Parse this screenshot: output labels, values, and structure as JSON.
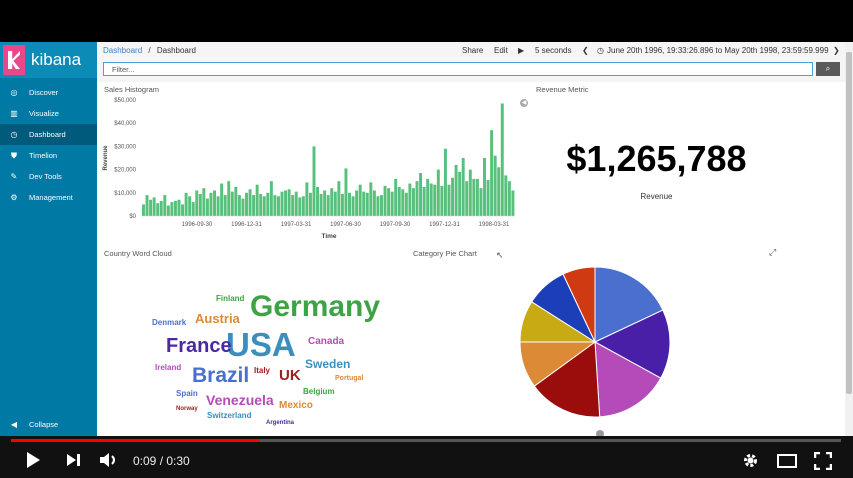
{
  "app": {
    "name": "kibana",
    "brand_color": "#e8488b",
    "sidebar_color": "#0079a5"
  },
  "sidebar": {
    "items": [
      {
        "label": "Discover",
        "icon": "compass-icon",
        "active": false
      },
      {
        "label": "Visualize",
        "icon": "bar-chart-icon",
        "active": false
      },
      {
        "label": "Dashboard",
        "icon": "dashboard-icon",
        "active": true
      },
      {
        "label": "Timelion",
        "icon": "shield-icon",
        "active": false
      },
      {
        "label": "Dev Tools",
        "icon": "wrench-icon",
        "active": false
      },
      {
        "label": "Management",
        "icon": "gear-icon",
        "active": false
      }
    ],
    "collapse_label": "Collapse"
  },
  "topbar": {
    "breadcrumb_root": "Dashboard",
    "breadcrumb_sep": "/",
    "breadcrumb_current": "Dashboard",
    "share": "Share",
    "edit": "Edit",
    "refresh_interval": "5 seconds",
    "time_range": "June 20th 1996, 19:33:26.896 to May 20th 1998, 23:59:59.999"
  },
  "filter": {
    "placeholder": "Filter..."
  },
  "panels": {
    "histogram_title": "Sales Histogram",
    "metric_title": "Revenue Metric",
    "wordcloud_title": "Country Word Cloud",
    "pie_title": "Category Pie Chart"
  },
  "metric": {
    "value": "$1,265,788",
    "label": "Revenue"
  },
  "chart_data": [
    {
      "type": "bar",
      "ylabel": "Revenue",
      "xlabel": "Time",
      "ylim": [
        0,
        50000
      ],
      "y_ticks": [
        "$0",
        "$10,000",
        "$20,000",
        "$30,000",
        "$40,000",
        "$50,000"
      ],
      "x_ticks": [
        "1996-09-30",
        "1996-12-31",
        "1997-03-31",
        "1997-06-30",
        "1997-09-30",
        "1997-12-31",
        "1998-03-31"
      ],
      "color": "#57c17b",
      "values": [
        5000,
        9000,
        7000,
        8000,
        5500,
        6500,
        9000,
        4500,
        6000,
        6500,
        7000,
        5000,
        10000,
        8500,
        6000,
        11000,
        9500,
        12000,
        7500,
        10000,
        11000,
        8500,
        14000,
        9000,
        15000,
        10500,
        12500,
        9000,
        7500,
        10000,
        11500,
        9000,
        13500,
        9500,
        8500,
        10000,
        15000,
        9000,
        8500,
        10500,
        11000,
        11500,
        9000,
        10500,
        8000,
        8500,
        14500,
        10000,
        30000,
        12500,
        9500,
        11000,
        9000,
        12000,
        10500,
        15000,
        9500,
        20500,
        10000,
        8500,
        11000,
        13500,
        10500,
        10000,
        14500,
        11000,
        8500,
        9000,
        13000,
        12000,
        10500,
        16000,
        12500,
        11500,
        10000,
        14000,
        12000,
        15000,
        18500,
        12500,
        16000,
        14000,
        13500,
        20000,
        13000,
        29000,
        13500,
        16500,
        22000,
        19000,
        25000,
        15000,
        20000,
        16000,
        16000,
        12000,
        25000,
        15500,
        37000,
        26000,
        21000,
        48500,
        17500,
        15000,
        11000
      ]
    },
    {
      "type": "pie",
      "slices": [
        {
          "label": "",
          "value": 18,
          "color": "#4a6fcf"
        },
        {
          "label": "",
          "value": 15,
          "color": "#4a1fa8"
        },
        {
          "label": "",
          "value": 16,
          "color": "#b54bb8"
        },
        {
          "label": "",
          "value": 16,
          "color": "#9b0d0d"
        },
        {
          "label": "",
          "value": 10,
          "color": "#dc8a36"
        },
        {
          "label": "",
          "value": 9,
          "color": "#c8ab14"
        },
        {
          "label": "",
          "value": 9,
          "color": "#1c3eb8"
        },
        {
          "label": "",
          "value": 7,
          "color": "#d03a12"
        }
      ]
    }
  ],
  "wordcloud": [
    {
      "text": "Germany",
      "size": 30,
      "color": "#3ea346"
    },
    {
      "text": "USA",
      "size": 33,
      "color": "#3a8fbf"
    },
    {
      "text": "France",
      "size": 20,
      "color": "#4a2aa0"
    },
    {
      "text": "Brazil",
      "size": 21,
      "color": "#4a6fcf"
    },
    {
      "text": "Venezuela",
      "size": 14,
      "color": "#b54bb8"
    },
    {
      "text": "Austria",
      "size": 13,
      "color": "#dc8a36"
    },
    {
      "text": "UK",
      "size": 15,
      "color": "#a01e1e"
    },
    {
      "text": "Sweden",
      "size": 12,
      "color": "#3a8fbf"
    },
    {
      "text": "Canada",
      "size": 10,
      "color": "#b54bb8"
    },
    {
      "text": "Mexico",
      "size": 10,
      "color": "#dc8a36"
    },
    {
      "text": "Finland",
      "size": 8,
      "color": "#3ea346"
    },
    {
      "text": "Denmark",
      "size": 8,
      "color": "#4a6fcf"
    },
    {
      "text": "Ireland",
      "size": 8,
      "color": "#b54bb8"
    },
    {
      "text": "Italy",
      "size": 8,
      "color": "#a01e1e"
    },
    {
      "text": "Belgium",
      "size": 8,
      "color": "#3ea346"
    },
    {
      "text": "Portugal",
      "size": 7,
      "color": "#dc8a36"
    },
    {
      "text": "Spain",
      "size": 8,
      "color": "#4a6fcf"
    },
    {
      "text": "Norway",
      "size": 6,
      "color": "#a01e1e"
    },
    {
      "text": "Switzerland",
      "size": 8,
      "color": "#3a8fbf"
    },
    {
      "text": "Argentina",
      "size": 6,
      "color": "#4a2aa0"
    }
  ],
  "player": {
    "time": "0:09 / 0:30",
    "progress": 0.3
  }
}
